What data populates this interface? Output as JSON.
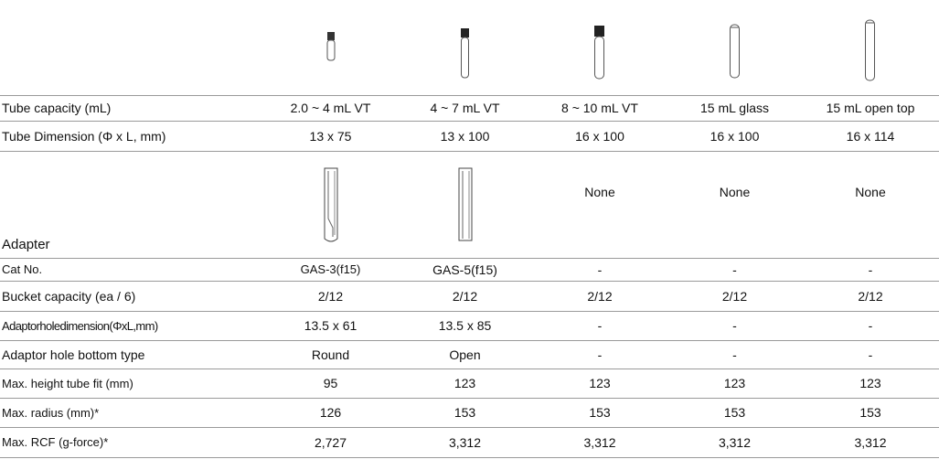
{
  "rows": [
    {
      "label": "Tube capacity (mL)",
      "cells": [
        "2.0 ~ 4 mL VT",
        "4 ~ 7 mL VT",
        "8 ~ 10 mL VT",
        "15 mL glass",
        "15 mL open top"
      ]
    },
    {
      "label": "Tube Dimension (Φ x L, mm)",
      "cells": [
        "13 x 75",
        "13 x 100",
        "16 x 100",
        "16 x 100",
        "16 x 114"
      ]
    },
    {
      "label": "Cat No.",
      "cells": [
        "GAS-3(f15)",
        "GAS-5(f15)",
        "-",
        "-",
        "-"
      ]
    },
    {
      "label": "Bucket capacity (ea / 6)",
      "cells": [
        "2/12",
        "2/12",
        "2/12",
        "2/12",
        "2/12"
      ]
    },
    {
      "label": "Adaptorholedimension(ΦxL,mm)",
      "cells": [
        "13.5 x 61",
        "13.5 x 85",
        "-",
        "-",
        "-"
      ]
    },
    {
      "label": "Adaptor hole bottom type",
      "cells": [
        "Round",
        "Open",
        "-",
        "-",
        "-"
      ]
    },
    {
      "label": "Max. height tube fit (mm)",
      "cells": [
        "95",
        "123",
        "123",
        "123",
        "123"
      ]
    },
    {
      "label": "Max. radius (mm)*",
      "cells": [
        "126",
        "153",
        "153",
        "153",
        "153"
      ]
    },
    {
      "label": "Max. RCF (g-force)*",
      "cells": [
        "2,727",
        "3,312",
        "3,312",
        "3,312",
        "3,312"
      ]
    }
  ],
  "adapter_row": {
    "label": "Adapter",
    "cells": [
      "None",
      "None",
      "None"
    ]
  }
}
